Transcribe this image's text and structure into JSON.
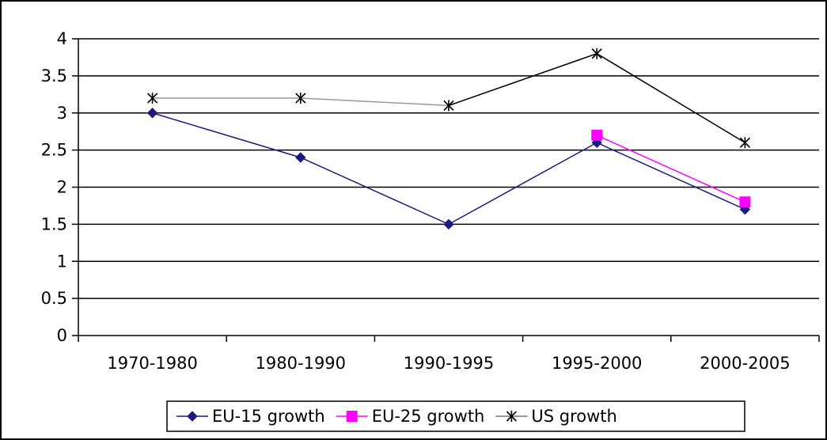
{
  "chart_data": {
    "type": "line",
    "title": "",
    "xlabel": "",
    "ylabel": "",
    "categories": [
      "1970-1980",
      "1980-1990",
      "1990-1995",
      "1995-2000",
      "2000-2005"
    ],
    "ylim": [
      0,
      4
    ],
    "yticks": [
      0,
      0.5,
      1,
      1.5,
      2,
      2.5,
      3,
      3.5,
      4
    ],
    "ytick_labels": [
      "0",
      "0.5",
      "1",
      "1.5",
      "2",
      "2.5",
      "3",
      "3.5",
      "4"
    ],
    "grid": "horizontal",
    "legend_position": "bottom",
    "series": [
      {
        "name": "EU-15 growth",
        "values": [
          3.0,
          2.4,
          1.5,
          2.6,
          1.7
        ],
        "color": "#1a1a80",
        "marker": "diamond"
      },
      {
        "name": "EU-25 growth",
        "values": [
          null,
          null,
          null,
          2.7,
          1.8
        ],
        "color": "#ff00ff",
        "marker": "square"
      },
      {
        "name": "US growth",
        "values": [
          3.2,
          3.2,
          3.1,
          3.8,
          2.6
        ],
        "color": "#000000",
        "marker": "asterisk",
        "segment_colors": [
          "#999999",
          "#999999",
          "#000000",
          "#000000"
        ]
      }
    ]
  }
}
